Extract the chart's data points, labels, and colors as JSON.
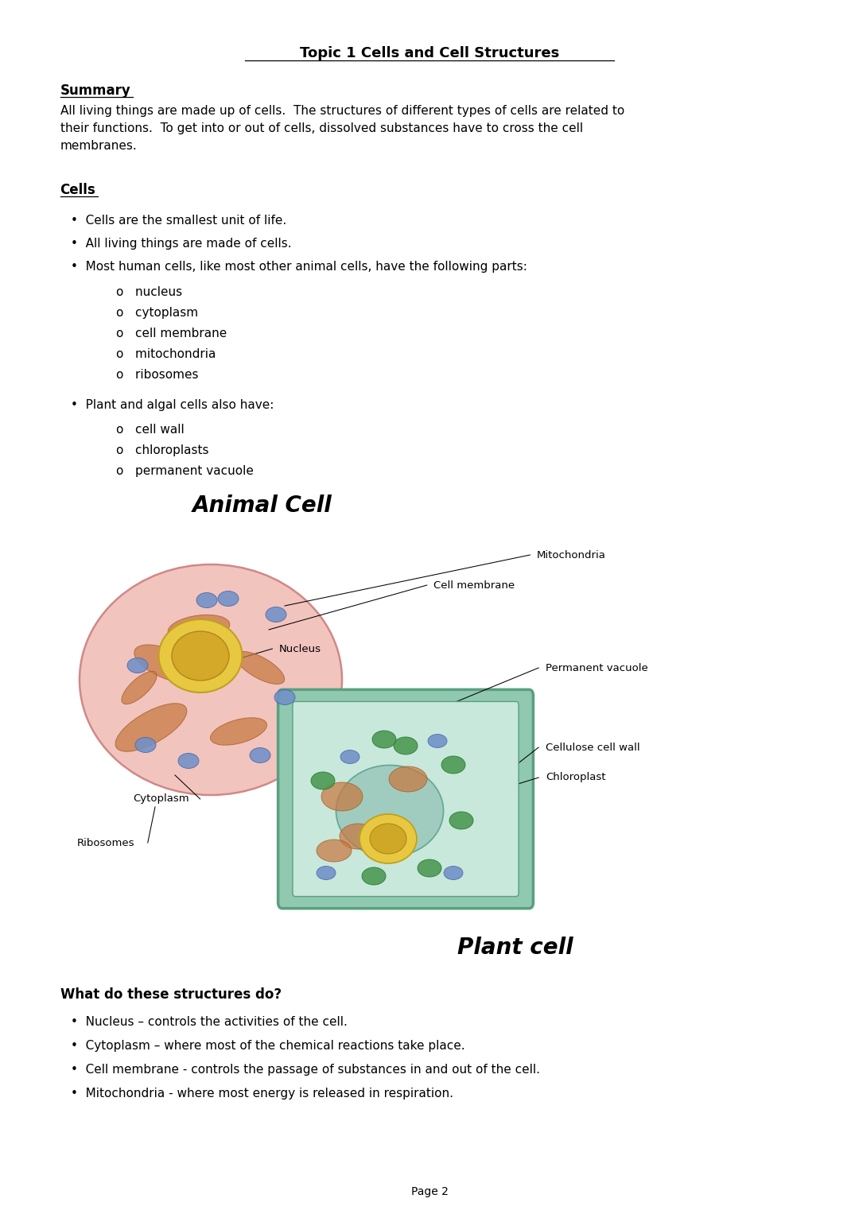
{
  "title": "Topic 1 Cells and Cell Structures",
  "bg_color": "#ffffff",
  "text_color": "#000000",
  "summary_heading": "Summary",
  "summary_lines": [
    "All living things are made up of cells.  The structures of different types of cells are related to",
    "their functions.  To get into or out of cells, dissolved substances have to cross the cell",
    "membranes."
  ],
  "cells_heading": "Cells",
  "main_bullets": [
    "Cells are the smallest unit of life.",
    "All living things are made of cells.",
    "Most human cells, like most other animal cells, have the following parts:"
  ],
  "sub_bullets1": [
    "nucleus",
    "cytoplasm",
    "cell membrane",
    "mitochondria",
    "ribosomes"
  ],
  "bullet4": "Plant and algal cells also have:",
  "sub_bullets2": [
    "cell wall",
    "chloroplasts",
    "permanent vacuole"
  ],
  "animal_cell_title": "Animal Cell",
  "plant_cell_title": "Plant cell",
  "structures_heading": "What do these structures do?",
  "structures_bullets": [
    "Nucleus – controls the activities of the cell.",
    "Cytoplasm – where most of the chemical reactions take place.",
    "Cell membrane - controls the passage of substances in and out of the cell.",
    "Mitochondria - where most energy is released in respiration."
  ],
  "page_label": "Page 2"
}
